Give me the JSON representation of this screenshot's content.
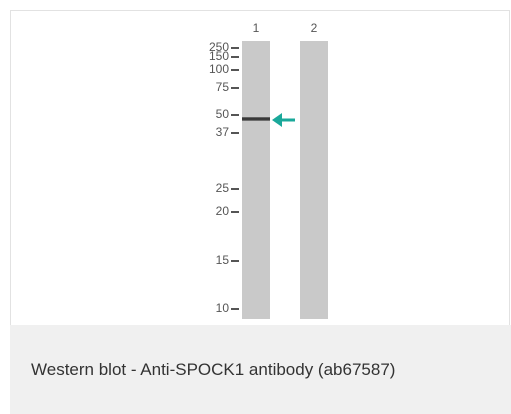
{
  "figure": {
    "lanes": [
      "1",
      "2"
    ],
    "markers": [
      "250",
      "150",
      "100",
      "75",
      "50",
      "37",
      "25",
      "20",
      "15",
      "10"
    ]
  },
  "caption": "Western blot - Anti-SPOCK1 antibody (ab67587)"
}
